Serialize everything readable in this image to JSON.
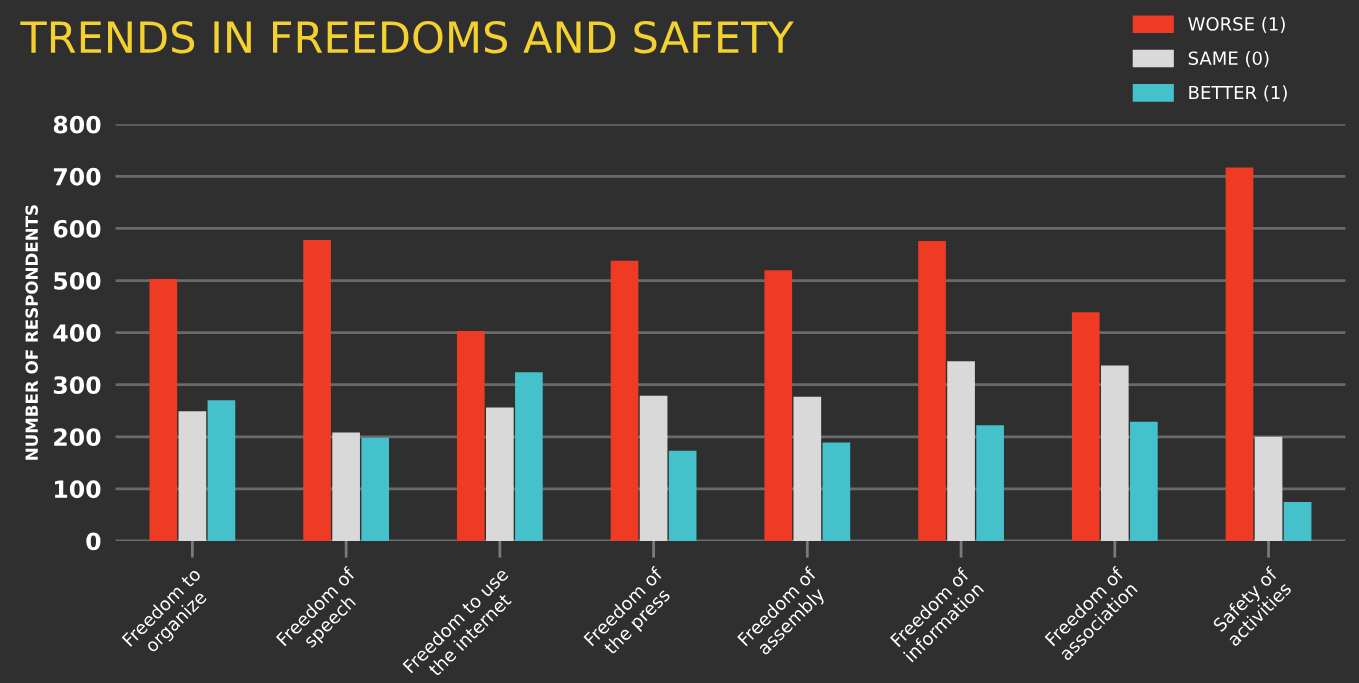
{
  "chart_data": {
    "type": "bar",
    "title": "TRENDS IN FREEDOMS AND SAFETY",
    "ylabel": "NUMBER OF RESPONDENTS",
    "categories": [
      "Freedom to\norganize",
      "Freedom of\nspeech",
      "Freedom to use\nthe internet",
      "Freedom of\nthe press",
      "Freedom of\nassembly",
      "Freedom of\ninformation",
      "Freedom of\nassociation",
      "Safety of\nactivities"
    ],
    "series": [
      {
        "name": "WORSE (1)",
        "color": "#ef3b24",
        "values": [
          503,
          578,
          403,
          538,
          520,
          576,
          439,
          717
        ]
      },
      {
        "name": "SAME (0)",
        "color": "#d9d9d9",
        "values": [
          249,
          208,
          256,
          279,
          277,
          345,
          337,
          200
        ]
      },
      {
        "name": "BETTER (1)",
        "color": "#45c1cb",
        "values": [
          270,
          198,
          324,
          173,
          189,
          222,
          229,
          75
        ]
      }
    ],
    "ylim": [
      0,
      800
    ],
    "yticks": [
      0,
      100,
      200,
      300,
      400,
      500,
      600,
      700,
      800
    ],
    "grid": "y",
    "legend": "top right"
  }
}
